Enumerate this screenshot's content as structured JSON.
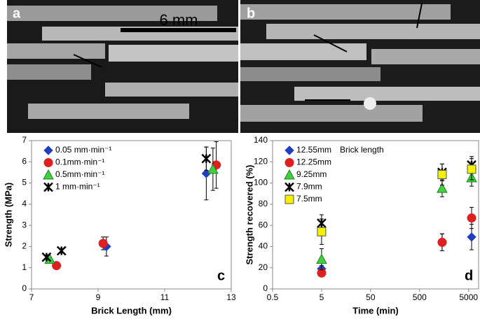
{
  "photos": {
    "labels": [
      "a",
      "b"
    ],
    "scale_bar": "6 mm"
  },
  "chart_data": [
    {
      "type": "scatter",
      "panel": "c",
      "x_label": "Brick Length (mm)",
      "y_label": "Strength (MPa)",
      "xlim": [
        7,
        13
      ],
      "xticks": [
        7,
        9,
        11,
        13
      ],
      "ylim": [
        0,
        7
      ],
      "yticks": [
        0,
        1,
        2,
        3,
        4,
        5,
        6,
        7
      ],
      "series": [
        {
          "name": "0.05 mm·min⁻¹",
          "color": "#1f3fbf",
          "marker": "diamond",
          "x": [
            9.25,
            12.25
          ],
          "values": [
            2.0,
            5.45
          ],
          "errors": [
            0.45,
            1.25
          ]
        },
        {
          "name": "0.1mm·min⁻¹",
          "color": "#e02020",
          "marker": "circle",
          "x": [
            7.75,
            9.15,
            12.55
          ],
          "values": [
            1.1,
            2.15,
            5.85
          ],
          "errors": [
            0.1,
            0.3,
            1.1
          ]
        },
        {
          "name": "0.5mm·min⁻¹",
          "color": "#40d040",
          "marker": "triangle",
          "x": [
            7.55,
            12.45
          ],
          "values": [
            1.4,
            5.65
          ],
          "errors": [
            0.1,
            1.0
          ]
        },
        {
          "name": "1 mm·min⁻¹",
          "color": "#000000",
          "marker": "x",
          "x": [
            7.45,
            7.9,
            12.25
          ],
          "values": [
            1.5,
            1.8,
            6.15
          ],
          "errors": [
            0.1,
            0.1,
            0.55
          ]
        }
      ]
    },
    {
      "type": "scatter",
      "panel": "d",
      "x_label": "Time (min)",
      "y_label": "Strength recovered (%)",
      "legend_title": "Brick length",
      "xscale": "log",
      "xlim": [
        0.5,
        8000
      ],
      "xticks": [
        0.5,
        5,
        50,
        500,
        5000
      ],
      "ylim": [
        0,
        140
      ],
      "yticks": [
        0,
        20,
        40,
        60,
        80,
        100,
        120,
        140
      ],
      "series": [
        {
          "name": "12.55mm",
          "color": "#1f3fbf",
          "marker": "diamond",
          "x": [
            5,
            1440,
            5760
          ],
          "values": [
            19,
            44,
            49
          ],
          "errors": [
            3,
            8,
            12
          ]
        },
        {
          "name": "12.25mm",
          "color": "#e02020",
          "marker": "circle",
          "x": [
            5,
            1440,
            5760
          ],
          "values": [
            15,
            44,
            67
          ],
          "errors": [
            3,
            8,
            10
          ]
        },
        {
          "name": "9.25mm",
          "color": "#40d040",
          "marker": "triangle",
          "x": [
            5,
            1440,
            5760
          ],
          "values": [
            28,
            95,
            105
          ],
          "errors": [
            10,
            8,
            8
          ]
        },
        {
          "name": "7.9mm",
          "color": "#000000",
          "marker": "x",
          "x": [
            5,
            1440,
            5760
          ],
          "values": [
            62,
            110,
            117
          ],
          "errors": [
            8,
            8,
            8
          ]
        },
        {
          "name": "7.5mm",
          "color": "#f5f000",
          "marker": "square",
          "x": [
            5,
            1440,
            5760
          ],
          "values": [
            54,
            108,
            113
          ],
          "errors": [
            12,
            10,
            10
          ]
        }
      ]
    }
  ]
}
